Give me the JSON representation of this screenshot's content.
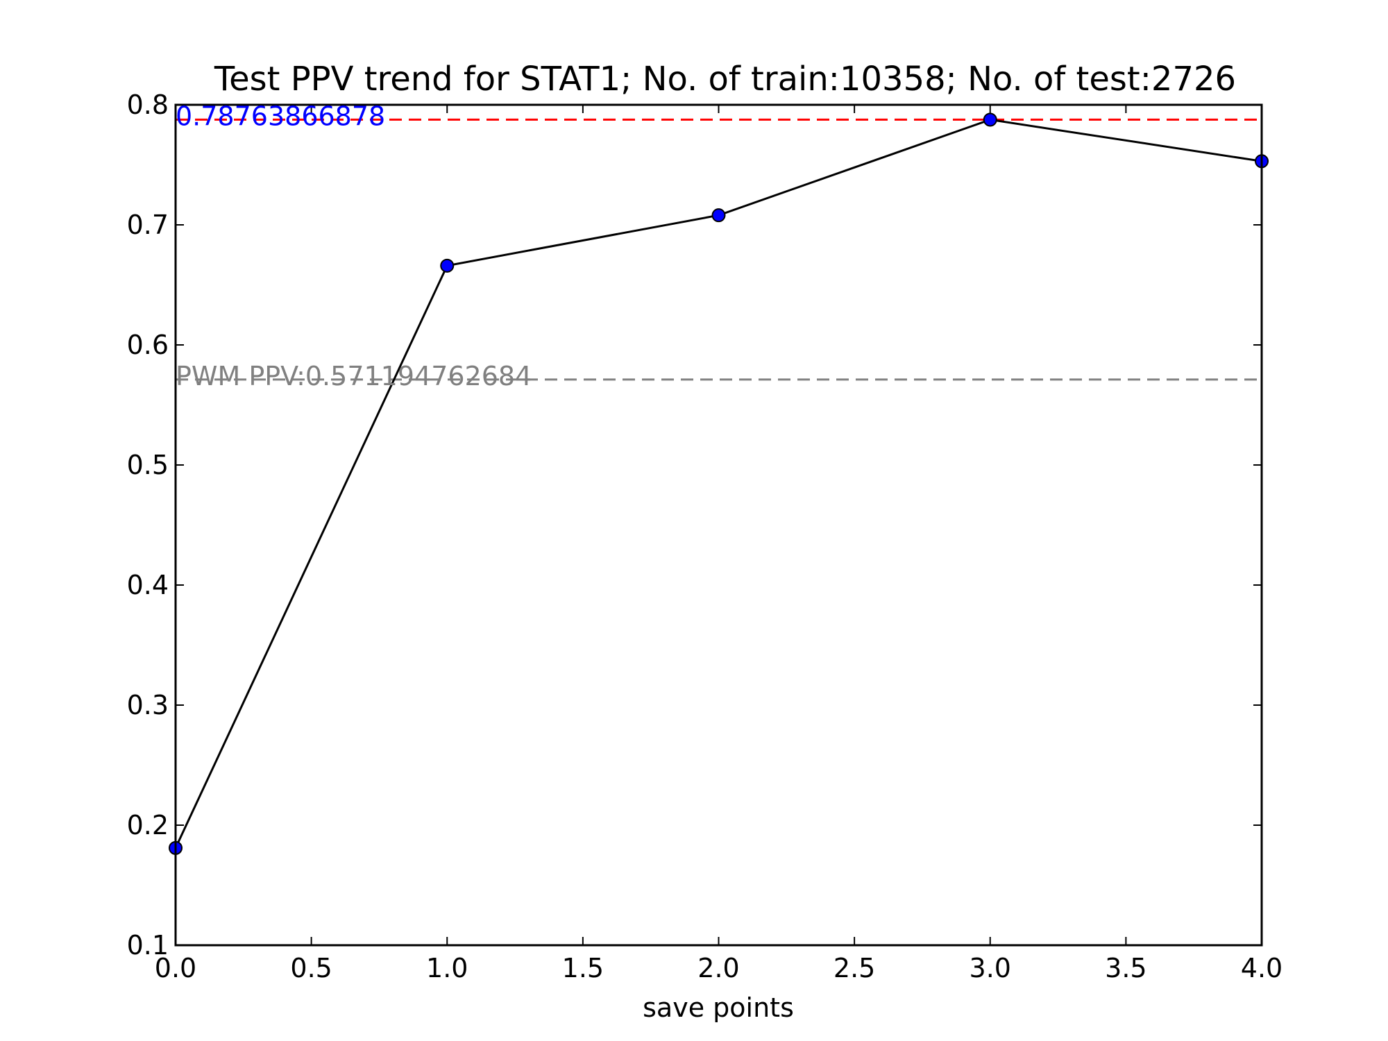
{
  "chart_data": {
    "type": "line",
    "title": "Test PPV trend for STAT1; No. of train:10358; No. of test:2726",
    "xlabel": "save points",
    "ylabel": "",
    "xlim": [
      0,
      4
    ],
    "ylim": [
      0.1,
      0.8
    ],
    "x_ticks": [
      "0.0",
      "0.5",
      "1.0",
      "1.5",
      "2.0",
      "2.5",
      "3.0",
      "3.5",
      "4.0"
    ],
    "y_ticks": [
      "0.1",
      "0.2",
      "0.3",
      "0.4",
      "0.5",
      "0.6",
      "0.7",
      "0.8"
    ],
    "grid": false,
    "series": [
      {
        "x": [
          0,
          1,
          2,
          3,
          4
        ],
        "y": [
          0.181,
          0.666,
          0.708,
          0.7876,
          0.753
        ],
        "line_color": "#000000",
        "marker_color": "#0000ff"
      }
    ],
    "reference_lines": [
      {
        "y": 0.78763866878,
        "color": "#ff0000",
        "style": "dashed",
        "label": "0.78763866878",
        "label_color": "#0000ff"
      },
      {
        "y": 0.571194762684,
        "color": "#808080",
        "style": "dashed",
        "label": "PWM PPV:0.571194762684",
        "label_color": "#808080"
      }
    ]
  }
}
